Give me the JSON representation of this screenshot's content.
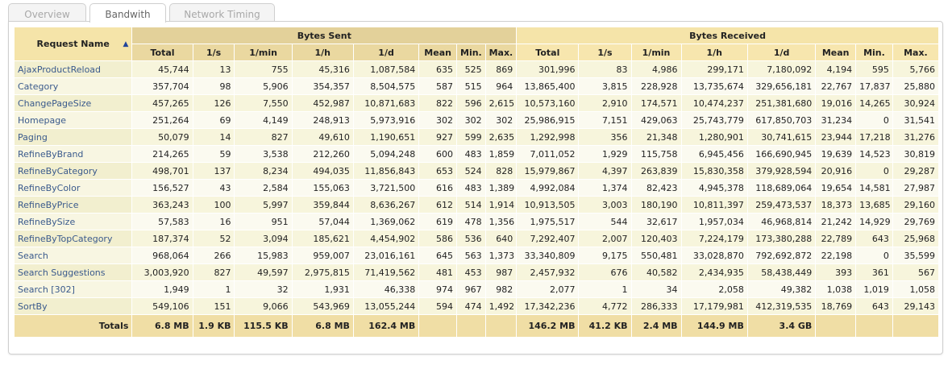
{
  "tabs": [
    {
      "label": "Overview",
      "active": false
    },
    {
      "label": "Bandwith",
      "active": true
    },
    {
      "label": "Network Timing",
      "active": false
    }
  ],
  "table": {
    "name_header": "Request Name",
    "sent_header": "Bytes Sent",
    "received_header": "Bytes Received",
    "columns": [
      "Total",
      "1/s",
      "1/min",
      "1/h",
      "1/d",
      "Mean",
      "Min.",
      "Max."
    ],
    "rows": [
      {
        "name": "AjaxProductReload",
        "sent": [
          "45,744",
          "13",
          "755",
          "45,316",
          "1,087,584",
          "635",
          "525",
          "869"
        ],
        "received": [
          "301,996",
          "83",
          "4,986",
          "299,171",
          "7,180,092",
          "4,194",
          "595",
          "5,766"
        ]
      },
      {
        "name": "Category",
        "sent": [
          "357,704",
          "98",
          "5,906",
          "354,357",
          "8,504,575",
          "587",
          "515",
          "964"
        ],
        "received": [
          "13,865,400",
          "3,815",
          "228,928",
          "13,735,674",
          "329,656,181",
          "22,767",
          "17,837",
          "25,880"
        ]
      },
      {
        "name": "ChangePageSize",
        "sent": [
          "457,265",
          "126",
          "7,550",
          "452,987",
          "10,871,683",
          "822",
          "596",
          "2,615"
        ],
        "received": [
          "10,573,160",
          "2,910",
          "174,571",
          "10,474,237",
          "251,381,680",
          "19,016",
          "14,265",
          "30,924"
        ]
      },
      {
        "name": "Homepage",
        "sent": [
          "251,264",
          "69",
          "4,149",
          "248,913",
          "5,973,916",
          "302",
          "302",
          "302"
        ],
        "received": [
          "25,986,915",
          "7,151",
          "429,063",
          "25,743,779",
          "617,850,703",
          "31,234",
          "0",
          "31,541"
        ]
      },
      {
        "name": "Paging",
        "sent": [
          "50,079",
          "14",
          "827",
          "49,610",
          "1,190,651",
          "927",
          "599",
          "2,635"
        ],
        "received": [
          "1,292,998",
          "356",
          "21,348",
          "1,280,901",
          "30,741,615",
          "23,944",
          "17,218",
          "31,276"
        ]
      },
      {
        "name": "RefineByBrand",
        "sent": [
          "214,265",
          "59",
          "3,538",
          "212,260",
          "5,094,248",
          "600",
          "483",
          "1,859"
        ],
        "received": [
          "7,011,052",
          "1,929",
          "115,758",
          "6,945,456",
          "166,690,945",
          "19,639",
          "14,523",
          "30,819"
        ]
      },
      {
        "name": "RefineByCategory",
        "sent": [
          "498,701",
          "137",
          "8,234",
          "494,035",
          "11,856,843",
          "653",
          "524",
          "828"
        ],
        "received": [
          "15,979,867",
          "4,397",
          "263,839",
          "15,830,358",
          "379,928,594",
          "20,916",
          "0",
          "29,287"
        ]
      },
      {
        "name": "RefineByColor",
        "sent": [
          "156,527",
          "43",
          "2,584",
          "155,063",
          "3,721,500",
          "616",
          "483",
          "1,389"
        ],
        "received": [
          "4,992,084",
          "1,374",
          "82,423",
          "4,945,378",
          "118,689,064",
          "19,654",
          "14,581",
          "27,987"
        ]
      },
      {
        "name": "RefineByPrice",
        "sent": [
          "363,243",
          "100",
          "5,997",
          "359,844",
          "8,636,267",
          "612",
          "514",
          "1,914"
        ],
        "received": [
          "10,913,505",
          "3,003",
          "180,190",
          "10,811,397",
          "259,473,537",
          "18,373",
          "13,685",
          "29,160"
        ]
      },
      {
        "name": "RefineBySize",
        "sent": [
          "57,583",
          "16",
          "951",
          "57,044",
          "1,369,062",
          "619",
          "478",
          "1,356"
        ],
        "received": [
          "1,975,517",
          "544",
          "32,617",
          "1,957,034",
          "46,968,814",
          "21,242",
          "14,929",
          "29,769"
        ]
      },
      {
        "name": "RefineByTopCategory",
        "sent": [
          "187,374",
          "52",
          "3,094",
          "185,621",
          "4,454,902",
          "586",
          "536",
          "640"
        ],
        "received": [
          "7,292,407",
          "2,007",
          "120,403",
          "7,224,179",
          "173,380,288",
          "22,789",
          "643",
          "25,968"
        ]
      },
      {
        "name": "Search",
        "sent": [
          "968,064",
          "266",
          "15,983",
          "959,007",
          "23,016,161",
          "645",
          "563",
          "1,373"
        ],
        "received": [
          "33,340,809",
          "9,175",
          "550,481",
          "33,028,870",
          "792,692,872",
          "22,198",
          "0",
          "35,599"
        ]
      },
      {
        "name": "Search Suggestions",
        "sent": [
          "3,003,920",
          "827",
          "49,597",
          "2,975,815",
          "71,419,562",
          "481",
          "453",
          "987"
        ],
        "received": [
          "2,457,932",
          "676",
          "40,582",
          "2,434,935",
          "58,438,449",
          "393",
          "361",
          "567"
        ]
      },
      {
        "name": "Search [302]",
        "sent": [
          "1,949",
          "1",
          "32",
          "1,931",
          "46,338",
          "974",
          "967",
          "982"
        ],
        "received": [
          "2,077",
          "1",
          "34",
          "2,058",
          "49,382",
          "1,038",
          "1,019",
          "1,058"
        ]
      },
      {
        "name": "SortBy",
        "sent": [
          "549,106",
          "151",
          "9,066",
          "543,969",
          "13,055,244",
          "594",
          "474",
          "1,492"
        ],
        "received": [
          "17,342,236",
          "4,772",
          "286,333",
          "17,179,981",
          "412,319,535",
          "18,769",
          "643",
          "29,143"
        ]
      }
    ],
    "totals": {
      "label": "Totals",
      "sent": [
        "6.8 MB",
        "1.9 KB",
        "115.5 KB",
        "6.8 MB",
        "162.4 MB",
        "",
        "",
        ""
      ],
      "received": [
        "146.2 MB",
        "41.2 KB",
        "2.4 MB",
        "144.9 MB",
        "3.4 GB",
        "",
        "",
        ""
      ]
    }
  }
}
